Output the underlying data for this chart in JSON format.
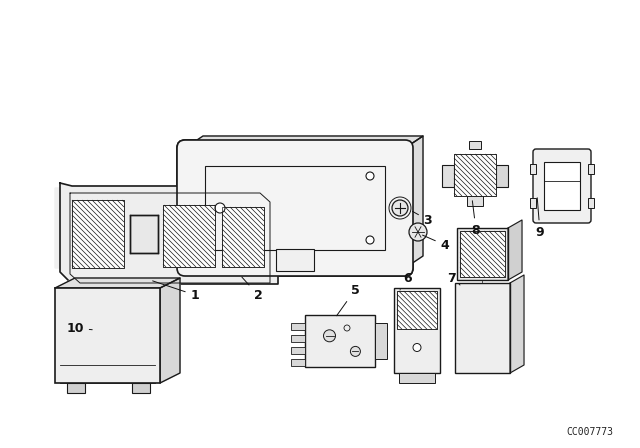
{
  "bg_color": "#ffffff",
  "line_color": "#1a1a1a",
  "fig_width": 6.4,
  "fig_height": 4.48,
  "dpi": 100,
  "diagram_code": "CC007773"
}
